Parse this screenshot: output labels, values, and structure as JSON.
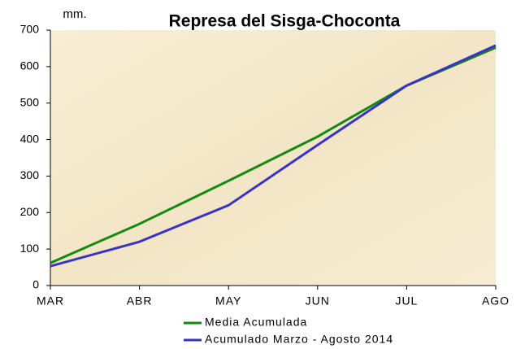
{
  "chart_data": {
    "type": "line",
    "title": "Represa del Sisga-Choconta",
    "y_label": "mm.",
    "categories": [
      "MAR",
      "ABR",
      "MAY",
      "JUN",
      "JUL",
      "AGO"
    ],
    "series": [
      {
        "name": "Media Acumulada",
        "color": "#118c11",
        "values": [
          62,
          169,
          287,
          408,
          548,
          652
        ]
      },
      {
        "name": "Acumulado Marzo - Agosto 2014",
        "color": "#3a32c4",
        "values": [
          53,
          120,
          220,
          385,
          548,
          658
        ]
      }
    ],
    "ylim": [
      0,
      700
    ],
    "yticks": [
      0,
      100,
      200,
      300,
      400,
      500,
      600,
      700
    ],
    "grid": false
  }
}
